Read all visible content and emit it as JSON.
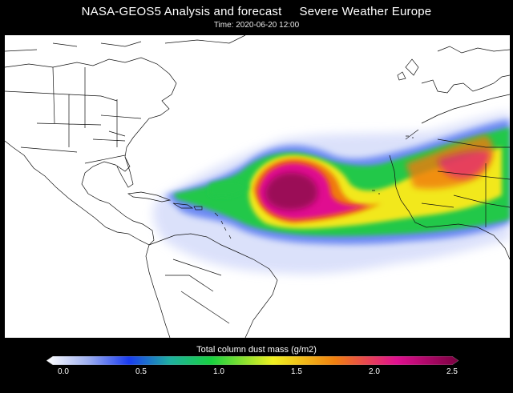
{
  "header": {
    "title_left": "NASA-GEOS5  Analysis and forecast",
    "title_right": "Severe Weather Europe",
    "time": "Time: 2020-06-20 12:00"
  },
  "map": {
    "variable": "Total column dust mass (g/m2)",
    "features": [
      "north-america",
      "south-america",
      "africa",
      "europe",
      "greenland",
      "caribbean-islands",
      "dust-plume"
    ]
  },
  "colorbar": {
    "title": "Total column dust mass (g/m2)",
    "ticks": [
      "0.0",
      "0.5",
      "1.0",
      "1.5",
      "2.0",
      "2.5"
    ],
    "min": 0.0,
    "max": 2.5,
    "colors": [
      "#ffffff",
      "#1a3cf0",
      "#18d040",
      "#f0f020",
      "#f08010",
      "#e01090",
      "#7a0040"
    ]
  }
}
